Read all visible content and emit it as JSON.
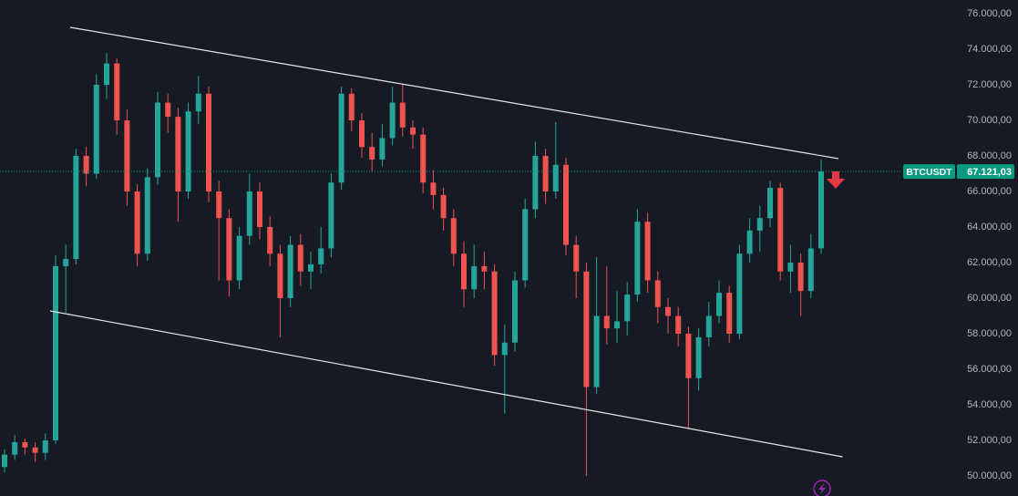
{
  "chart_data": {
    "type": "candlestick",
    "symbol": "BTCUSDT",
    "up_color": "#26a69a",
    "down_color": "#ef5350",
    "open": [
      50500,
      51200,
      51900,
      51600,
      51300,
      52000,
      61800,
      62200,
      68000,
      67000,
      72000,
      73200,
      70000,
      66000,
      62500,
      66800,
      71000,
      70200,
      66000,
      70500,
      71500,
      66000,
      64500,
      61000,
      63500,
      66000,
      64000,
      62500,
      60000,
      63000,
      61500,
      61900,
      62800,
      66500,
      71500,
      70000,
      68500,
      67800,
      69000,
      71000,
      69600,
      69200,
      66500,
      65800,
      64500,
      62500,
      60500,
      61800,
      61500,
      56800,
      57500,
      61000,
      65000,
      68000,
      66000,
      67500,
      63000,
      61500,
      55000,
      59000,
      58300,
      58700,
      60200,
      64300,
      61000,
      59500,
      59000,
      58000,
      55500,
      57800,
      59000,
      60300,
      58000,
      62500,
      63800,
      64500,
      66200,
      61500,
      62000,
      60400,
      62800
    ],
    "high": [
      51500,
      52300,
      52100,
      51900,
      52400,
      62400,
      63000,
      68400,
      68500,
      72600,
      73800,
      73500,
      70600,
      66400,
      67300,
      71600,
      71500,
      70700,
      71000,
      72500,
      71900,
      66600,
      65000,
      64000,
      67000,
      66500,
      64600,
      63000,
      63500,
      63600,
      62600,
      64000,
      67000,
      71900,
      71800,
      70400,
      69300,
      69800,
      71900,
      72000,
      70000,
      69600,
      67200,
      66200,
      65000,
      63200,
      63000,
      62600,
      61900,
      58500,
      61500,
      65600,
      68800,
      68400,
      69900,
      67900,
      63500,
      62000,
      62300,
      61800,
      60400,
      60900,
      65000,
      64800,
      61500,
      60000,
      59500,
      58400,
      58300,
      59800,
      61000,
      60700,
      63000,
      64500,
      65200,
      66600,
      66500,
      63000,
      62500,
      63600,
      67800
    ],
    "low": [
      50200,
      50900,
      51200,
      50800,
      50900,
      51800,
      59200,
      61900,
      66300,
      66700,
      71200,
      69200,
      65200,
      61800,
      62100,
      66400,
      69300,
      64300,
      65600,
      69800,
      65400,
      61000,
      60100,
      60500,
      63000,
      63300,
      61800,
      57800,
      59500,
      60700,
      60500,
      61400,
      62300,
      66100,
      69400,
      67900,
      67100,
      67400,
      68600,
      69100,
      68400,
      65900,
      65000,
      63800,
      61800,
      59500,
      60000,
      60500,
      56200,
      53500,
      57000,
      60600,
      64500,
      65300,
      65600,
      62400,
      60000,
      50000,
      54600,
      57400,
      57500,
      57900,
      59800,
      60300,
      58600,
      58000,
      57300,
      52700,
      54800,
      57300,
      58600,
      57500,
      57700,
      62000,
      62600,
      64000,
      61000,
      60300,
      59000,
      60000,
      62500
    ],
    "close": [
      51200,
      51900,
      51600,
      51300,
      52000,
      61800,
      62200,
      68000,
      67000,
      72000,
      73200,
      70000,
      66000,
      62500,
      66800,
      71000,
      70200,
      66000,
      70500,
      71500,
      66000,
      64500,
      61000,
      63500,
      66000,
      64000,
      62500,
      60000,
      63000,
      61500,
      61900,
      62800,
      66500,
      71500,
      70000,
      68500,
      67800,
      69000,
      71000,
      69600,
      69200,
      66500,
      65800,
      64500,
      62500,
      60500,
      61800,
      61500,
      56800,
      57500,
      61000,
      65000,
      68000,
      66000,
      67500,
      63000,
      61500,
      55000,
      59000,
      58300,
      58700,
      60200,
      64300,
      61000,
      59500,
      59000,
      58000,
      55500,
      57800,
      59000,
      60300,
      58000,
      62500,
      63800,
      64500,
      66200,
      61500,
      62000,
      60400,
      62800,
      67121.03
    ],
    "last_price": {
      "value": 67121.03,
      "label": "67.121,03"
    },
    "trendlines": [
      {
        "x": [
          6.43,
          81.7
        ],
        "y": [
          75231,
          67846
        ]
      },
      {
        "x": [
          4.46,
          82.1
        ],
        "y": [
          59282,
          51077
        ]
      }
    ],
    "ylim": [
      48872,
      76769
    ],
    "yticks": [
      {
        "value": 50000,
        "label": "50.000,00"
      },
      {
        "value": 52000,
        "label": "52.000,00"
      },
      {
        "value": 54000,
        "label": "54.000,00"
      },
      {
        "value": 56000,
        "label": "56.000,00"
      },
      {
        "value": 58000,
        "label": "58.000,00"
      },
      {
        "value": 60000,
        "label": "60.000,00"
      },
      {
        "value": 62000,
        "label": "62.000,00"
      },
      {
        "value": 64000,
        "label": "64.000,00"
      },
      {
        "value": 66000,
        "label": "66.000,00"
      },
      {
        "value": 68000,
        "label": "68.000,00"
      },
      {
        "value": 70000,
        "label": "70.000,00"
      },
      {
        "value": 72000,
        "label": "72.000,00"
      },
      {
        "value": 74000,
        "label": "74.000,00"
      },
      {
        "value": 76000,
        "label": "76.000,00"
      }
    ]
  }
}
